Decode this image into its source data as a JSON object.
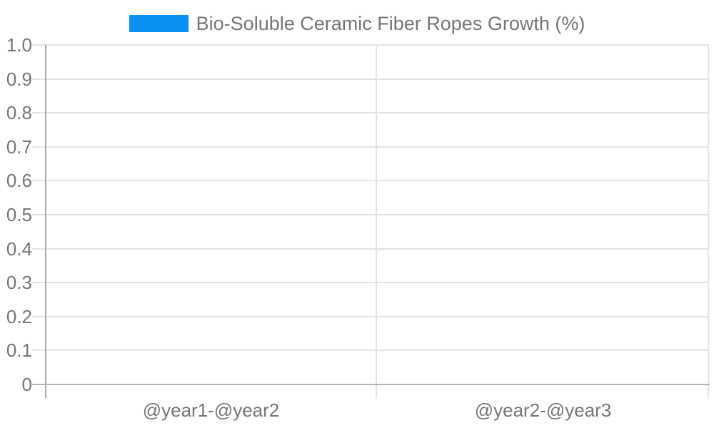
{
  "legend": {
    "label": "Bio-Soluble Ceramic Fiber Ropes Growth (%)",
    "swatch_color": "#0a8ff2"
  },
  "chart_data": {
    "type": "bar",
    "title": "Bio-Soluble Ceramic Fiber Ropes Growth (%)",
    "categories": [
      "@year1-@year2",
      "@year2-@year3"
    ],
    "series": [
      {
        "name": "Bio-Soluble Ceramic Fiber Ropes Growth (%)",
        "values": []
      }
    ],
    "xlabel": "",
    "ylabel": "",
    "ylim": [
      0,
      1.0
    ],
    "y_ticks": [
      "1.0",
      "0.9",
      "0.8",
      "0.7",
      "0.6",
      "0.5",
      "0.4",
      "0.3",
      "0.2",
      "0.1",
      "0"
    ],
    "grid": true,
    "legend_position": "top-center"
  },
  "colors": {
    "series_blue": "#0a8ff2",
    "gridline": "#e2e2e2",
    "x_axis": "#b3b3b3",
    "y_axis": "#a8a8a8",
    "label_text": "#757575",
    "background": "#ffffff"
  }
}
